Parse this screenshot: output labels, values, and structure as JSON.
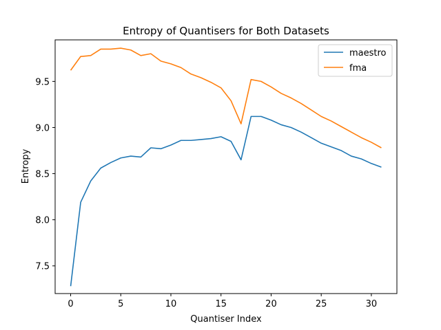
{
  "chart_data": {
    "type": "line",
    "title": "Entropy of Quantisers for Both Datasets",
    "xlabel": "Quantiser Index",
    "ylabel": "Entropy",
    "xlim": [
      -1.55,
      32.55
    ],
    "ylim": [
      7.2,
      9.95
    ],
    "xticks": [
      0,
      5,
      10,
      15,
      20,
      25,
      30
    ],
    "yticks": [
      7.5,
      8.0,
      8.5,
      9.0,
      9.5
    ],
    "ytick_labels": [
      "7.5",
      "8.0",
      "8.5",
      "9.0",
      "9.5"
    ],
    "grid": false,
    "legend_position": "top-right",
    "x": [
      0,
      1,
      2,
      3,
      4,
      5,
      6,
      7,
      8,
      9,
      10,
      11,
      12,
      13,
      14,
      15,
      16,
      17,
      18,
      19,
      20,
      21,
      22,
      23,
      24,
      25,
      26,
      27,
      28,
      29,
      30,
      31
    ],
    "series": [
      {
        "name": "maestro",
        "color": "#1f77b4",
        "values": [
          7.28,
          8.19,
          8.42,
          8.56,
          8.62,
          8.67,
          8.69,
          8.68,
          8.78,
          8.77,
          8.81,
          8.86,
          8.86,
          8.87,
          8.88,
          8.9,
          8.85,
          8.65,
          9.12,
          9.12,
          9.08,
          9.03,
          9.0,
          8.95,
          8.89,
          8.83,
          8.79,
          8.75,
          8.69,
          8.66,
          8.61,
          8.57
        ]
      },
      {
        "name": "fma",
        "color": "#ff7f0e",
        "values": [
          9.62,
          9.77,
          9.78,
          9.85,
          9.85,
          9.86,
          9.84,
          9.78,
          9.8,
          9.72,
          9.69,
          9.65,
          9.58,
          9.54,
          9.49,
          9.43,
          9.29,
          9.04,
          9.52,
          9.5,
          9.44,
          9.37,
          9.32,
          9.26,
          9.19,
          9.12,
          9.07,
          9.01,
          8.95,
          8.89,
          8.84,
          8.78
        ]
      }
    ]
  }
}
